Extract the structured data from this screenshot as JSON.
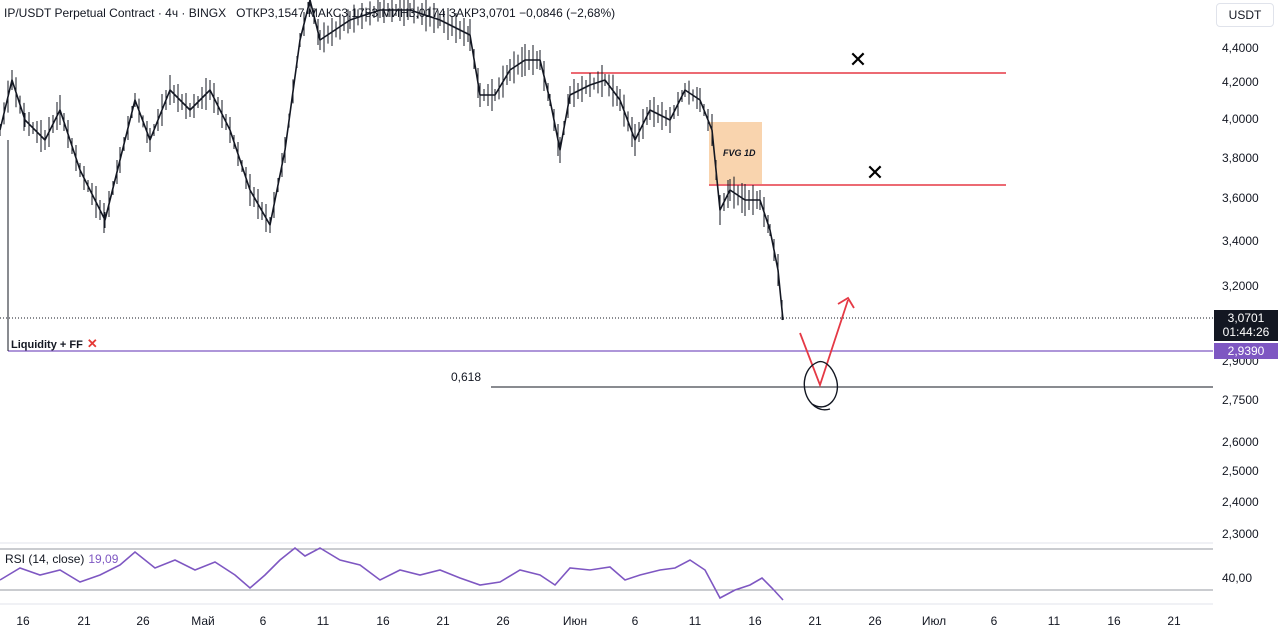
{
  "header": {
    "symbol": "IP/USDT Perpetual Contract · 4ч · BINGX",
    "open": "ОТКР3,1547",
    "high": "МАКС3,1783",
    "low": "МИН3,0174",
    "close": "ЗАКР3,0701",
    "change": "−0,0846 (−2,68%)"
  },
  "currency_button": "USDT",
  "price_axis_labels": [
    "4,4000",
    "4,2000",
    "4,0000",
    "3,8000",
    "3,6000",
    "3,4000",
    "3,2000",
    "2,9000",
    "2,7500",
    "2,6000",
    "2,5000",
    "2,4000",
    "2,3000"
  ],
  "time_axis_labels": [
    "16",
    "21",
    "26",
    "Май",
    "6",
    "11",
    "16",
    "21",
    "26",
    "Июн",
    "6",
    "11",
    "16",
    "21",
    "26",
    "Июл",
    "6",
    "11",
    "16",
    "21"
  ],
  "last_price": {
    "price": "3,0701",
    "countdown": "01:44:26"
  },
  "liquidity_line": {
    "label": "Liquidity + FF",
    "mark": "✕",
    "price_tag": "2,9390",
    "color": "#7e57c2"
  },
  "fib_level": {
    "label": "0,618"
  },
  "fvg": {
    "label": "FVG 1D",
    "color": "#f7c99a"
  },
  "resistance_lines": {
    "color": "#e53945",
    "marks": [
      "✕",
      "✕"
    ]
  },
  "rsi": {
    "label": "RSI (14, close)",
    "value": "19,09",
    "level_label": "40,00",
    "color": "#7e57c2"
  },
  "chart_data": {
    "type": "line",
    "title": "IP/USDT Perpetual Contract",
    "x": [
      "16",
      "21",
      "26",
      "Май",
      "6",
      "11",
      "16",
      "21",
      "26",
      "Июн",
      "6",
      "11",
      "16",
      "21"
    ],
    "series": [
      {
        "values": [
          3.95,
          3.7,
          3.95,
          4.15,
          3.5,
          4.8,
          4.7,
          4.35,
          4.15,
          4.25,
          3.95,
          4.15,
          3.6,
          3.07
        ]
      }
    ],
    "ylim": [
      2.25,
      4.5
    ],
    "annotations": [
      "FVG 1D",
      "Liquidity + FF",
      "0,618"
    ]
  }
}
